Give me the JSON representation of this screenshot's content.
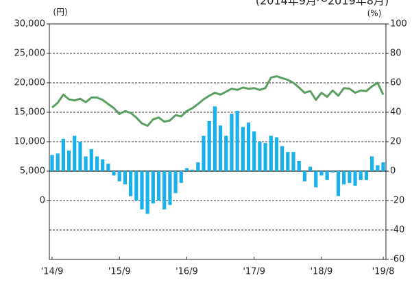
{
  "chart_data": {
    "type": "bar",
    "subtitle": "(2014年9月～2019年8月)",
    "y_label": "(円)",
    "y2_label": "(%)",
    "categories": [
      "'14/9",
      null,
      null,
      null,
      null,
      null,
      null,
      null,
      null,
      null,
      null,
      null,
      "'15/9",
      null,
      null,
      null,
      null,
      null,
      null,
      null,
      null,
      null,
      null,
      null,
      "'16/9",
      null,
      null,
      null,
      null,
      null,
      null,
      null,
      null,
      null,
      null,
      null,
      "'17/9",
      null,
      null,
      null,
      null,
      null,
      null,
      null,
      null,
      null,
      null,
      null,
      "'18/9",
      null,
      null,
      null,
      null,
      null,
      null,
      null,
      null,
      null,
      null,
      "'19/8"
    ],
    "series": [
      {
        "type": "bar",
        "axis": "y2",
        "color": "#1ab0ea",
        "values": [
          11,
          12,
          22,
          14,
          24,
          20,
          10,
          15,
          10,
          8,
          5,
          -3,
          -7,
          -9,
          -17,
          -20,
          -26,
          -29,
          -22,
          -20,
          -26,
          -23,
          -15,
          -8,
          2,
          1,
          6,
          24,
          34,
          44,
          31,
          24,
          39,
          41,
          30,
          33,
          27,
          20,
          19,
          24,
          23,
          17,
          13,
          13,
          7,
          -7,
          3,
          -11,
          -3,
          -6,
          -1,
          -17,
          -9,
          -8,
          -10,
          -6,
          -6,
          10,
          4,
          6
        ]
      },
      {
        "type": "line",
        "color": "#5a9e62",
        "values": [
          15800,
          16600,
          18000,
          17200,
          17000,
          17300,
          16700,
          17500,
          17500,
          17100,
          16400,
          15700,
          14700,
          15200,
          14900,
          14100,
          13100,
          12700,
          13800,
          14100,
          13400,
          13600,
          14500,
          14300,
          15200,
          15700,
          16400,
          17200,
          17800,
          18300,
          18000,
          18500,
          19000,
          18800,
          19200,
          19000,
          19100,
          18800,
          19100,
          20900,
          21100,
          20800,
          20500,
          20000,
          19200,
          18300,
          18600,
          17100,
          18300,
          17600,
          18700,
          17800,
          19100,
          19000,
          18300,
          18700,
          18600,
          19400,
          20000,
          18000
        ]
      }
    ],
    "ylim": [
      -10000,
      30000
    ],
    "yticks": [
      0,
      {
        "value": 5000,
        "label": "5,000"
      },
      {
        "value": 10000,
        "label": "10,000"
      },
      {
        "value": 15000,
        "label": "15,000"
      },
      {
        "value": 20000,
        "label": "20,000"
      },
      {
        "value": 25000,
        "label": "25,000"
      },
      {
        "value": 30000,
        "label": "30,000"
      }
    ],
    "y2lim": [
      -60,
      100
    ],
    "y2ticks": [
      -60,
      -40,
      -20,
      0,
      20,
      40,
      60,
      80,
      100
    ],
    "grid": true
  }
}
